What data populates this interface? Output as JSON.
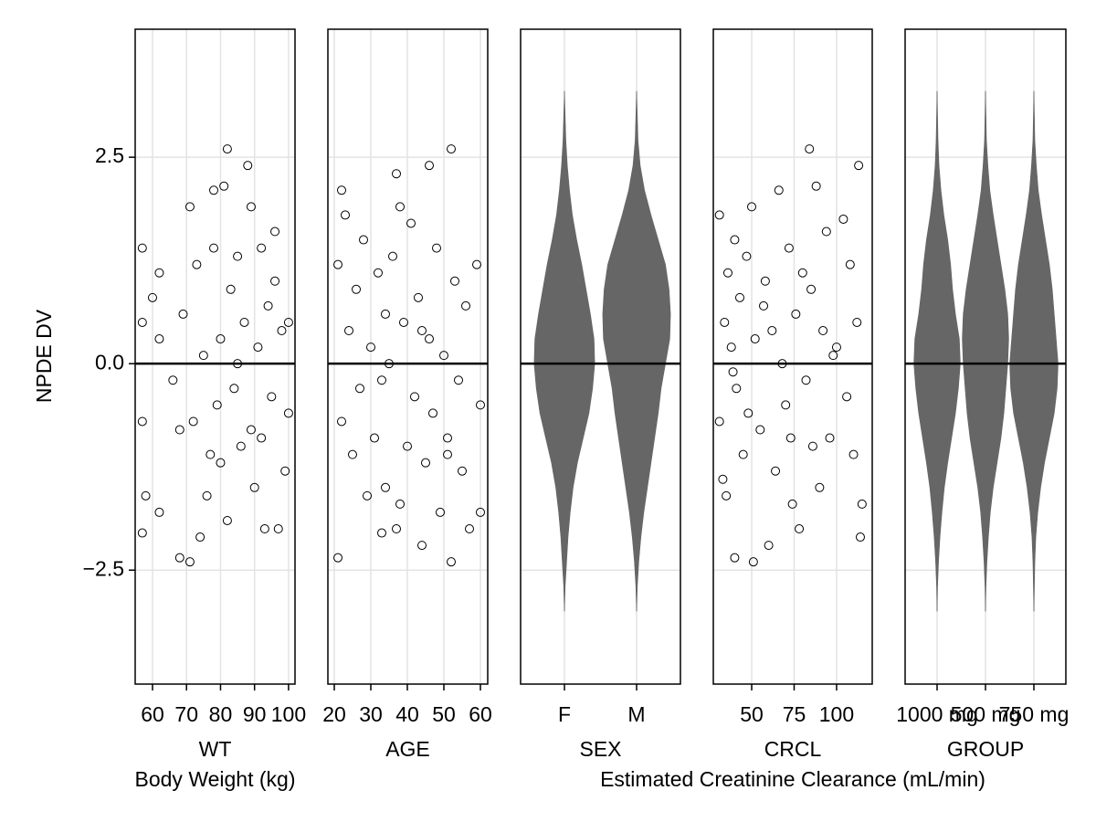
{
  "chart_data": [
    {
      "type": "scatter",
      "xlabel": "WT",
      "xsublabel": "Body Weight (kg)",
      "ylabel": "NPDE DV",
      "xlim": [
        54.9,
        101.9
      ],
      "xticks": [
        60,
        70,
        80,
        90,
        100
      ],
      "ylim": [
        -3.88,
        4.05
      ],
      "yticks": [
        {
          "value": -2.5,
          "label": "−2.5"
        },
        {
          "value": 0,
          "label": "0.0"
        },
        {
          "value": 2.5,
          "label": "2.5"
        }
      ],
      "hline": 0,
      "grid": true,
      "color": "#000000",
      "x": [
        57,
        57,
        57,
        57,
        58,
        62,
        62,
        62,
        68,
        68,
        69,
        71,
        71,
        72,
        73,
        74,
        75,
        76,
        78,
        78,
        79,
        80,
        80,
        81,
        82,
        82,
        83,
        84,
        85,
        86,
        87,
        88,
        89,
        89,
        90,
        91,
        92,
        93,
        94,
        95,
        96,
        97,
        98,
        99,
        100,
        100,
        60,
        66,
        77,
        85,
        92,
        96
      ],
      "values": [
        1.4,
        -0.7,
        -2.05,
        0.5,
        -1.6,
        -1.8,
        0.3,
        1.1,
        -2.35,
        -0.8,
        0.6,
        1.9,
        -2.4,
        -0.7,
        1.2,
        -2.1,
        0.1,
        -1.6,
        2.1,
        1.4,
        -0.5,
        0.3,
        -1.2,
        2.15,
        2.6,
        -1.9,
        0.9,
        -0.3,
        1.3,
        -1.0,
        0.5,
        2.4,
        -0.8,
        1.9,
        -1.5,
        0.2,
        1.4,
        -2.0,
        0.7,
        -0.4,
        1.0,
        -2.0,
        0.4,
        -1.3,
        0.5,
        -0.6,
        0.8,
        -0.2,
        -1.1,
        0.0,
        -0.9,
        1.6
      ]
    },
    {
      "type": "scatter",
      "xlabel": "AGE",
      "xlim": [
        18.25,
        62
      ],
      "xticks": [
        20,
        30,
        40,
        50,
        60
      ],
      "ylim": [
        -3.88,
        4.05
      ],
      "yticks": [
        {
          "value": -2.5,
          "label": "−2.5"
        },
        {
          "value": 0,
          "label": "0.0"
        },
        {
          "value": 2.5,
          "label": "2.5"
        }
      ],
      "hline": 0,
      "grid": true,
      "color": "#000000",
      "x": [
        21,
        21,
        22,
        22,
        23,
        24,
        25,
        26,
        27,
        28,
        29,
        30,
        31,
        32,
        33,
        34,
        34,
        35,
        36,
        37,
        37,
        38,
        38,
        39,
        40,
        41,
        42,
        43,
        44,
        45,
        46,
        46,
        47,
        48,
        49,
        50,
        51,
        52,
        52,
        53,
        54,
        55,
        56,
        57,
        59,
        60,
        60,
        33,
        44,
        51
      ],
      "values": [
        -2.35,
        1.2,
        2.1,
        -0.7,
        1.8,
        0.4,
        -1.1,
        0.9,
        -0.3,
        1.5,
        -1.6,
        0.2,
        -0.9,
        1.1,
        -2.05,
        0.6,
        -1.5,
        0.0,
        1.3,
        2.3,
        -2.0,
        -1.7,
        1.9,
        0.5,
        -1.0,
        1.7,
        -0.4,
        0.8,
        -2.2,
        -1.2,
        2.4,
        0.3,
        -0.6,
        1.4,
        -1.8,
        0.1,
        -0.9,
        2.6,
        -2.4,
        1.0,
        -0.2,
        -1.3,
        0.7,
        -2.0,
        1.2,
        -0.5,
        -1.8,
        -0.2,
        0.4,
        -1.1
      ]
    },
    {
      "type": "violin",
      "xlabel": "SEX",
      "categories": [
        "F",
        "M"
      ],
      "ylim": [
        -3.88,
        4.05
      ],
      "yticks": [
        {
          "value": -2.5,
          "label": "−2.5"
        },
        {
          "value": 0,
          "label": "0.0"
        },
        {
          "value": 2.5,
          "label": "2.5"
        }
      ],
      "hline": 0,
      "grid": true,
      "color": "#666666",
      "y": [
        -3.0,
        -2.7,
        -2.4,
        -2.1,
        -1.8,
        -1.5,
        -1.2,
        -0.9,
        -0.6,
        -0.3,
        0,
        0.3,
        0.6,
        0.9,
        1.2,
        1.5,
        1.8,
        2.1,
        2.4,
        2.7,
        3.0,
        3.3
      ],
      "widths": [
        [
          0,
          0.01,
          0.03,
          0.05,
          0.08,
          0.12,
          0.18,
          0.26,
          0.34,
          0.39,
          0.42,
          0.41,
          0.36,
          0.3,
          0.24,
          0.17,
          0.11,
          0.07,
          0.04,
          0.02,
          0.01,
          0
        ],
        [
          0,
          0.01,
          0.03,
          0.06,
          0.1,
          0.15,
          0.2,
          0.25,
          0.3,
          0.34,
          0.4,
          0.46,
          0.47,
          0.45,
          0.4,
          0.3,
          0.2,
          0.11,
          0.05,
          0.02,
          0.01,
          0
        ]
      ]
    },
    {
      "type": "scatter",
      "xlabel": "CRCL",
      "xsublabel": "Estimated Creatinine Clearance (mL/min)",
      "xlim": [
        27.4,
        121
      ],
      "xticks": [
        50,
        75,
        100
      ],
      "ylim": [
        -3.88,
        4.05
      ],
      "yticks": [
        {
          "value": -2.5,
          "label": "−2.5"
        },
        {
          "value": 0,
          "label": "0.0"
        },
        {
          "value": 2.5,
          "label": "2.5"
        }
      ],
      "hline": 0,
      "grid": true,
      "color": "#000000",
      "x": [
        31,
        31,
        33,
        34,
        35,
        36,
        38,
        40,
        40,
        41,
        43,
        45,
        47,
        48,
        50,
        51,
        52,
        55,
        58,
        60,
        62,
        64,
        66,
        68,
        70,
        72,
        74,
        76,
        78,
        80,
        82,
        84,
        85,
        86,
        88,
        90,
        92,
        94,
        96,
        100,
        104,
        106,
        108,
        110,
        112,
        113,
        114,
        115,
        39,
        57,
        73,
        98
      ],
      "values": [
        1.8,
        -0.7,
        -1.4,
        0.5,
        -1.6,
        1.1,
        0.2,
        -2.35,
        1.5,
        -0.3,
        0.8,
        -1.1,
        1.3,
        -0.6,
        1.9,
        -2.4,
        0.3,
        -0.8,
        1.0,
        -2.2,
        0.4,
        -1.3,
        2.1,
        0.0,
        -0.5,
        1.4,
        -1.7,
        0.6,
        -2.0,
        1.1,
        -0.2,
        2.6,
        0.9,
        -1.0,
        2.15,
        -1.5,
        0.4,
        1.6,
        -0.9,
        0.2,
        1.75,
        -0.4,
        1.2,
        -1.1,
        0.5,
        2.4,
        -2.1,
        -1.7,
        -0.1,
        0.7,
        -0.9,
        0.1
      ]
    },
    {
      "type": "violin",
      "xlabel": "GROUP",
      "categories": [
        "1000 mg",
        "500 mg",
        "750 mg"
      ],
      "ylim": [
        -3.88,
        4.05
      ],
      "yticks": [
        {
          "value": -2.5,
          "label": "−2.5"
        },
        {
          "value": 0,
          "label": "0.0"
        },
        {
          "value": 2.5,
          "label": "2.5"
        }
      ],
      "hline": 0,
      "grid": true,
      "color": "#666666",
      "y": [
        -3.0,
        -2.7,
        -2.4,
        -2.1,
        -1.8,
        -1.5,
        -1.2,
        -0.9,
        -0.6,
        -0.3,
        0,
        0.3,
        0.6,
        0.9,
        1.2,
        1.5,
        1.8,
        2.1,
        2.4,
        2.7,
        3.0,
        3.3
      ],
      "widths": [
        [
          0,
          0.01,
          0.03,
          0.06,
          0.1,
          0.15,
          0.22,
          0.3,
          0.38,
          0.44,
          0.48,
          0.46,
          0.38,
          0.32,
          0.28,
          0.22,
          0.14,
          0.08,
          0.04,
          0.02,
          0.01,
          0
        ],
        [
          0,
          0.01,
          0.03,
          0.06,
          0.1,
          0.16,
          0.24,
          0.32,
          0.38,
          0.42,
          0.46,
          0.48,
          0.46,
          0.4,
          0.32,
          0.24,
          0.16,
          0.09,
          0.05,
          0.02,
          0.01,
          0
        ],
        [
          0,
          0.01,
          0.02,
          0.04,
          0.08,
          0.14,
          0.22,
          0.32,
          0.42,
          0.48,
          0.5,
          0.46,
          0.42,
          0.38,
          0.32,
          0.24,
          0.16,
          0.09,
          0.05,
          0.02,
          0.01,
          0
        ]
      ]
    }
  ]
}
